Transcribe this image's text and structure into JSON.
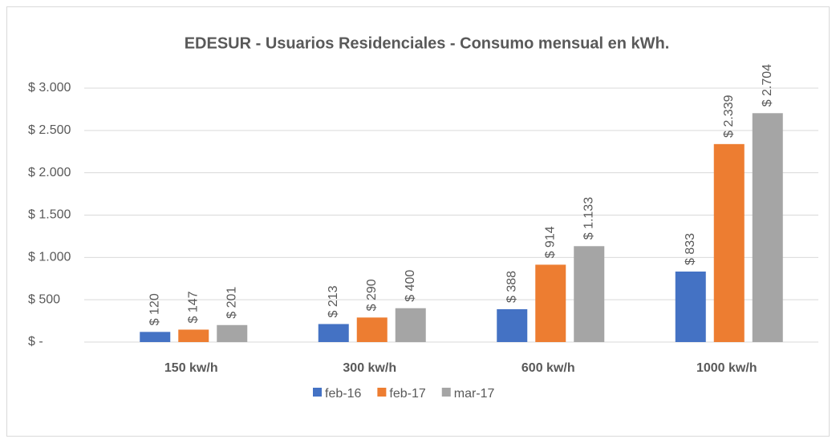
{
  "chart_data": {
    "type": "bar",
    "title": "EDESUR - Usuarios Residenciales - Consumo mensual en kWh.",
    "categories": [
      "150 kw/h",
      "300 kw/h",
      "600 kw/h",
      "1000 kw/h"
    ],
    "series": [
      {
        "name": "feb-16",
        "color": "#4472c4",
        "values": [
          120,
          213,
          388,
          833
        ],
        "value_labels": [
          "$ 120",
          "$ 213",
          "$ 388",
          "$ 833"
        ]
      },
      {
        "name": "feb-17",
        "color": "#ed7d31",
        "values": [
          147,
          290,
          914,
          2339
        ],
        "value_labels": [
          "$ 147",
          "$ 290",
          "$ 914",
          "$ 2.339"
        ]
      },
      {
        "name": "mar-17",
        "color": "#a5a5a5",
        "values": [
          201,
          400,
          1133,
          2704
        ],
        "value_labels": [
          "$ 201",
          "$ 400",
          "$ 1.133",
          "$ 2.704"
        ]
      }
    ],
    "ylim": [
      0,
      3000
    ],
    "yticks": [
      {
        "value": 0,
        "label": "$ -"
      },
      {
        "value": 500,
        "label": "$ 500"
      },
      {
        "value": 1000,
        "label": "$ 1.000"
      },
      {
        "value": 1500,
        "label": "$ 1.500"
      },
      {
        "value": 2000,
        "label": "$ 2.000"
      },
      {
        "value": 2500,
        "label": "$ 2.500"
      },
      {
        "value": 3000,
        "label": "$ 3.000"
      }
    ],
    "grid": true,
    "legend": "bottom"
  }
}
